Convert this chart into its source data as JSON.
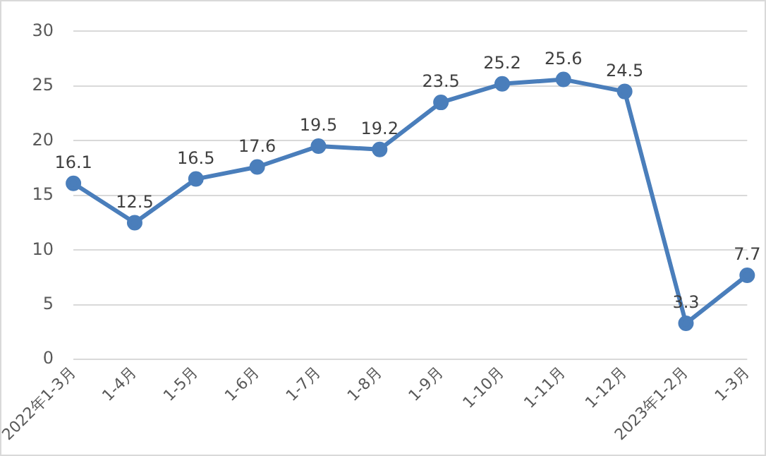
{
  "chart_data": {
    "type": "line",
    "categories": [
      "2022年1-3月",
      "1-4月",
      "1-5月",
      "1-6月",
      "1-7月",
      "1-8月",
      "1-9月",
      "1-10月",
      "1-11月",
      "1-12月",
      "2023年1-2月",
      "1-3月"
    ],
    "series": [
      {
        "color": "#4a7ebb",
        "values": [
          16.1,
          12.5,
          16.5,
          17.6,
          19.5,
          19.2,
          23.5,
          25.2,
          25.6,
          24.5,
          3.3,
          7.7
        ]
      }
    ],
    "ylim": [
      0,
      30
    ],
    "yticks": [
      0,
      5,
      10,
      15,
      20,
      25,
      30
    ],
    "grid": "y",
    "legend": false,
    "marker": "circle",
    "line_style": "solid",
    "data_labels": true
  }
}
